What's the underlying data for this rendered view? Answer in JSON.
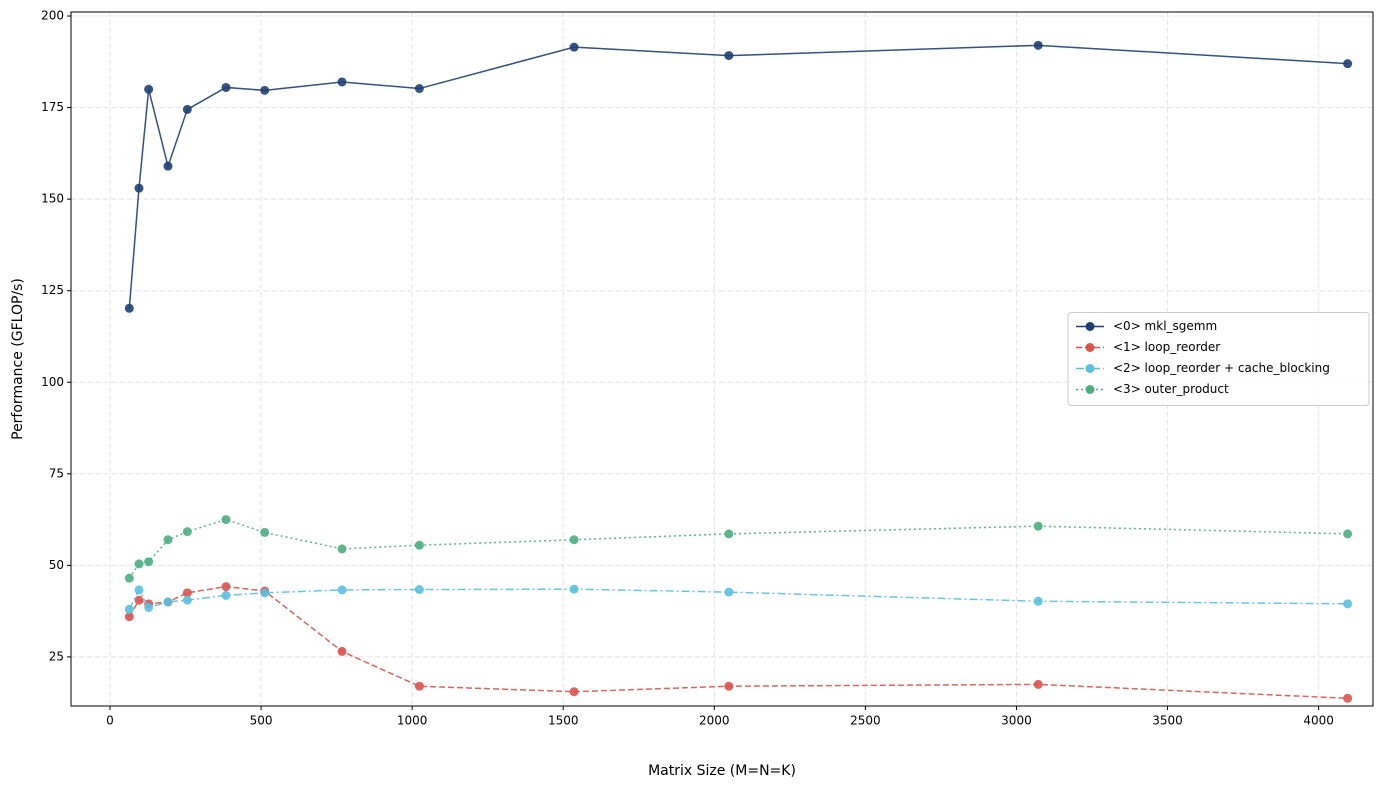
{
  "chart_data": {
    "type": "line",
    "xlabel": "Matrix Size (M=N=K)",
    "ylabel": "Performance (GFLOP/s)",
    "x": [
      64,
      96,
      128,
      192,
      256,
      384,
      512,
      768,
      1024,
      1536,
      2048,
      3072,
      4096
    ],
    "series": [
      {
        "name": "<0> mkl_sgemm",
        "color": "#1f3f73",
        "linestyle": "solid",
        "values": [
          120.2,
          153,
          180,
          159,
          174.5,
          180.5,
          179.7,
          182,
          180.2,
          191.5,
          189.2,
          192,
          187
        ]
      },
      {
        "name": "<1> loop_reorder",
        "color": "#d9534f",
        "linestyle": "dashed",
        "values": [
          36,
          40.5,
          39.5,
          40,
          42.5,
          44.2,
          43,
          26.5,
          17,
          15.5,
          17,
          17.5,
          13.7
        ]
      },
      {
        "name": "<2> loop_reorder + cache_blocking",
        "color": "#5bc0de",
        "linestyle": "dashdot",
        "values": [
          38,
          43.3,
          38.5,
          40,
          40.5,
          41.8,
          42.5,
          43.3,
          43.4,
          43.5,
          42.7,
          40.2,
          39.5
        ]
      },
      {
        "name": "<3> outer_product",
        "color": "#4cae7f",
        "linestyle": "dotted",
        "values": [
          46.5,
          50.4,
          51,
          57,
          59.2,
          62.5,
          59,
          54.5,
          55.5,
          57,
          58.6,
          60.7,
          58.6
        ]
      }
    ],
    "xlim": [
      -129,
      4180
    ],
    "xticks": [
      0,
      500,
      1000,
      1500,
      2000,
      2500,
      3000,
      3500,
      4000
    ],
    "ylim": [
      11.6,
      201.1
    ],
    "yticks": [
      25,
      50,
      75,
      100,
      125,
      150,
      175,
      200
    ],
    "grid": true,
    "legend": "center right"
  }
}
